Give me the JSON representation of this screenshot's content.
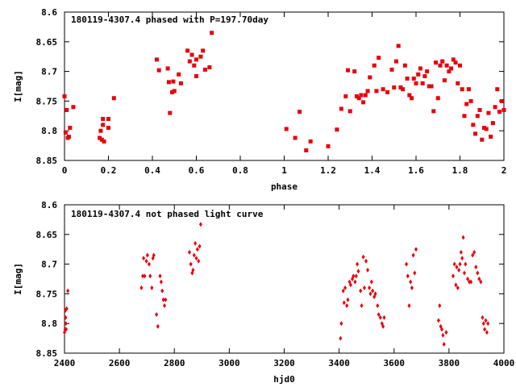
{
  "chart_data": [
    {
      "type": "scatter",
      "title": "180119-4307.4 phased with P=197.70day",
      "xlabel": "phase",
      "ylabel": "I[mag]",
      "xlim": [
        0,
        2
      ],
      "ylim": [
        8.85,
        8.6
      ],
      "y_inverted": true,
      "xticks": [
        "0",
        "0.2",
        "0.4",
        "0.6",
        "0.8",
        "1",
        "1.2",
        "1.4",
        "1.6",
        "1.8",
        "2"
      ],
      "xtick_values": [
        0,
        0.2,
        0.4,
        0.6,
        0.8,
        1.0,
        1.2,
        1.4,
        1.6,
        1.8,
        2.0
      ],
      "yticks": [
        "8.6",
        "8.65",
        "8.7",
        "8.75",
        "8.8",
        "8.85"
      ],
      "ytick_values": [
        8.6,
        8.65,
        8.7,
        8.75,
        8.8,
        8.85
      ],
      "grid": false,
      "marker_color": "#e8000b",
      "points": [
        [
          0.0,
          8.742
        ],
        [
          0.005,
          8.803
        ],
        [
          0.01,
          8.765
        ],
        [
          0.015,
          8.812
        ],
        [
          0.02,
          8.81
        ],
        [
          0.025,
          8.795
        ],
        [
          0.04,
          8.76
        ],
        [
          0.16,
          8.812
        ],
        [
          0.165,
          8.8
        ],
        [
          0.17,
          8.815
        ],
        [
          0.175,
          8.79
        ],
        [
          0.175,
          8.78
        ],
        [
          0.18,
          8.818
        ],
        [
          0.2,
          8.78
        ],
        [
          0.2,
          8.795
        ],
        [
          0.225,
          8.745
        ],
        [
          0.42,
          8.68
        ],
        [
          0.43,
          8.698
        ],
        [
          0.47,
          8.695
        ],
        [
          0.475,
          8.718
        ],
        [
          0.48,
          8.77
        ],
        [
          0.49,
          8.735
        ],
        [
          0.495,
          8.717
        ],
        [
          0.5,
          8.733
        ],
        [
          0.52,
          8.705
        ],
        [
          0.53,
          8.72
        ],
        [
          0.56,
          8.665
        ],
        [
          0.57,
          8.683
        ],
        [
          0.58,
          8.672
        ],
        [
          0.59,
          8.69
        ],
        [
          0.6,
          8.708
        ],
        [
          0.6,
          8.68
        ],
        [
          0.62,
          8.675
        ],
        [
          0.63,
          8.665
        ],
        [
          0.64,
          8.697
        ],
        [
          0.66,
          8.693
        ],
        [
          0.67,
          8.635
        ],
        [
          1.01,
          8.797
        ],
        [
          1.05,
          8.812
        ],
        [
          1.07,
          8.768
        ],
        [
          1.1,
          8.833
        ],
        [
          1.12,
          8.818
        ],
        [
          1.2,
          8.826
        ],
        [
          1.24,
          8.798
        ],
        [
          1.26,
          8.763
        ],
        [
          1.28,
          8.742
        ],
        [
          1.29,
          8.698
        ],
        [
          1.3,
          8.767
        ],
        [
          1.32,
          8.7
        ],
        [
          1.33,
          8.742
        ],
        [
          1.34,
          8.745
        ],
        [
          1.35,
          8.74
        ],
        [
          1.36,
          8.752
        ],
        [
          1.37,
          8.74
        ],
        [
          1.38,
          8.733
        ],
        [
          1.39,
          8.71
        ],
        [
          1.41,
          8.69
        ],
        [
          1.42,
          8.733
        ],
        [
          1.43,
          8.677
        ],
        [
          1.45,
          8.73
        ],
        [
          1.47,
          8.735
        ],
        [
          1.49,
          8.697
        ],
        [
          1.5,
          8.727
        ],
        [
          1.51,
          8.683
        ],
        [
          1.52,
          8.657
        ],
        [
          1.53,
          8.727
        ],
        [
          1.54,
          8.73
        ],
        [
          1.55,
          8.69
        ],
        [
          1.56,
          8.712
        ],
        [
          1.57,
          8.74
        ],
        [
          1.58,
          8.745
        ],
        [
          1.59,
          8.712
        ],
        [
          1.6,
          8.72
        ],
        [
          1.61,
          8.705
        ],
        [
          1.62,
          8.695
        ],
        [
          1.63,
          8.72
        ],
        [
          1.64,
          8.708
        ],
        [
          1.65,
          8.7
        ],
        [
          1.66,
          8.725
        ],
        [
          1.67,
          8.725
        ],
        [
          1.68,
          8.767
        ],
        [
          1.69,
          8.685
        ],
        [
          1.7,
          8.745
        ],
        [
          1.71,
          8.69
        ],
        [
          1.72,
          8.683
        ],
        [
          1.73,
          8.715
        ],
        [
          1.74,
          8.69
        ],
        [
          1.75,
          8.7
        ],
        [
          1.76,
          8.695
        ],
        [
          1.77,
          8.68
        ],
        [
          1.78,
          8.685
        ],
        [
          1.79,
          8.72
        ],
        [
          1.8,
          8.69
        ],
        [
          1.81,
          8.73
        ],
        [
          1.82,
          8.775
        ],
        [
          1.83,
          8.755
        ],
        [
          1.84,
          8.73
        ],
        [
          1.85,
          8.75
        ],
        [
          1.86,
          8.79
        ],
        [
          1.87,
          8.805
        ],
        [
          1.88,
          8.775
        ],
        [
          1.89,
          8.765
        ],
        [
          1.9,
          8.815
        ],
        [
          1.91,
          8.795
        ],
        [
          1.92,
          8.797
        ],
        [
          1.93,
          8.77
        ],
        [
          1.94,
          8.81
        ],
        [
          1.95,
          8.787
        ],
        [
          1.96,
          8.76
        ],
        [
          1.97,
          8.73
        ],
        [
          1.98,
          8.768
        ],
        [
          1.99,
          8.75
        ],
        [
          2.0,
          8.765
        ]
      ]
    },
    {
      "type": "scatter",
      "title": "180119-4307.4 not phased light curve",
      "xlabel": "hjd0",
      "ylabel": "I[mag]",
      "xlim": [
        2400,
        4000
      ],
      "ylim": [
        8.85,
        8.6
      ],
      "y_inverted": true,
      "xticks": [
        "2400",
        "2600",
        "2800",
        "3000",
        "3200",
        "3400",
        "3600",
        "3800",
        "4000"
      ],
      "xtick_values": [
        2400,
        2600,
        2800,
        3000,
        3200,
        3400,
        3600,
        3800,
        4000
      ],
      "yticks": [
        "8.6",
        "8.65",
        "8.7",
        "8.75",
        "8.8",
        "8.85"
      ],
      "ytick_values": [
        8.6,
        8.65,
        8.7,
        8.75,
        8.8,
        8.85
      ],
      "grid": false,
      "marker_color": "#e8000b",
      "points": [
        [
          2400,
          8.815
        ],
        [
          2402,
          8.81
        ],
        [
          2403,
          8.778
        ],
        [
          2404,
          8.79
        ],
        [
          2405,
          8.8
        ],
        [
          2406,
          8.81
        ],
        [
          2408,
          8.775
        ],
        [
          2412,
          8.745
        ],
        [
          2680,
          8.74
        ],
        [
          2685,
          8.72
        ],
        [
          2688,
          8.69
        ],
        [
          2692,
          8.72
        ],
        [
          2698,
          8.695
        ],
        [
          2702,
          8.685
        ],
        [
          2708,
          8.7
        ],
        [
          2712,
          8.72
        ],
        [
          2718,
          8.74
        ],
        [
          2722,
          8.69
        ],
        [
          2725,
          8.685
        ],
        [
          2735,
          8.785
        ],
        [
          2740,
          8.805
        ],
        [
          2748,
          8.72
        ],
        [
          2752,
          8.73
        ],
        [
          2756,
          8.745
        ],
        [
          2760,
          8.76
        ],
        [
          2764,
          8.77
        ],
        [
          2768,
          8.76
        ],
        [
          2855,
          8.68
        ],
        [
          2860,
          8.7
        ],
        [
          2865,
          8.715
        ],
        [
          2868,
          8.71
        ],
        [
          2872,
          8.685
        ],
        [
          2876,
          8.665
        ],
        [
          2880,
          8.69
        ],
        [
          2884,
          8.675
        ],
        [
          2888,
          8.695
        ],
        [
          2892,
          8.67
        ],
        [
          2896,
          8.633
        ],
        [
          3405,
          8.825
        ],
        [
          3408,
          8.8
        ],
        [
          3415,
          8.745
        ],
        [
          3418,
          8.765
        ],
        [
          3422,
          8.74
        ],
        [
          3428,
          8.77
        ],
        [
          3432,
          8.76
        ],
        [
          3438,
          8.73
        ],
        [
          3442,
          8.735
        ],
        [
          3448,
          8.725
        ],
        [
          3452,
          8.72
        ],
        [
          3458,
          8.73
        ],
        [
          3462,
          8.72
        ],
        [
          3466,
          8.7
        ],
        [
          3470,
          8.712
        ],
        [
          3478,
          8.745
        ],
        [
          3482,
          8.77
        ],
        [
          3488,
          8.688
        ],
        [
          3492,
          8.74
        ],
        [
          3498,
          8.695
        ],
        [
          3504,
          8.71
        ],
        [
          3510,
          8.74
        ],
        [
          3514,
          8.75
        ],
        [
          3518,
          8.73
        ],
        [
          3522,
          8.745
        ],
        [
          3528,
          8.755
        ],
        [
          3532,
          8.75
        ],
        [
          3540,
          8.77
        ],
        [
          3544,
          8.785
        ],
        [
          3550,
          8.79
        ],
        [
          3556,
          8.8
        ],
        [
          3560,
          8.805
        ],
        [
          3564,
          8.79
        ],
        [
          3645,
          8.7
        ],
        [
          3650,
          8.72
        ],
        [
          3655,
          8.77
        ],
        [
          3660,
          8.73
        ],
        [
          3665,
          8.74
        ],
        [
          3670,
          8.685
        ],
        [
          3675,
          8.715
        ],
        [
          3680,
          8.675
        ],
        [
          3762,
          8.795
        ],
        [
          3766,
          8.77
        ],
        [
          3770,
          8.805
        ],
        [
          3774,
          8.81
        ],
        [
          3778,
          8.82
        ],
        [
          3782,
          8.835
        ],
        [
          3790,
          8.815
        ],
        [
          3815,
          8.72
        ],
        [
          3820,
          8.7
        ],
        [
          3825,
          8.735
        ],
        [
          3828,
          8.705
        ],
        [
          3832,
          8.74
        ],
        [
          3836,
          8.71
        ],
        [
          3840,
          8.7
        ],
        [
          3844,
          8.68
        ],
        [
          3848,
          8.69
        ],
        [
          3852,
          8.655
        ],
        [
          3856,
          8.715
        ],
        [
          3860,
          8.7
        ],
        [
          3868,
          8.725
        ],
        [
          3874,
          8.73
        ],
        [
          3880,
          8.73
        ],
        [
          3886,
          8.685
        ],
        [
          3892,
          8.68
        ],
        [
          3898,
          8.705
        ],
        [
          3904,
          8.715
        ],
        [
          3910,
          8.725
        ],
        [
          3916,
          8.73
        ],
        [
          3922,
          8.79
        ],
        [
          3926,
          8.8
        ],
        [
          3930,
          8.81
        ],
        [
          3934,
          8.795
        ],
        [
          3938,
          8.815
        ],
        [
          3942,
          8.8
        ]
      ]
    }
  ]
}
